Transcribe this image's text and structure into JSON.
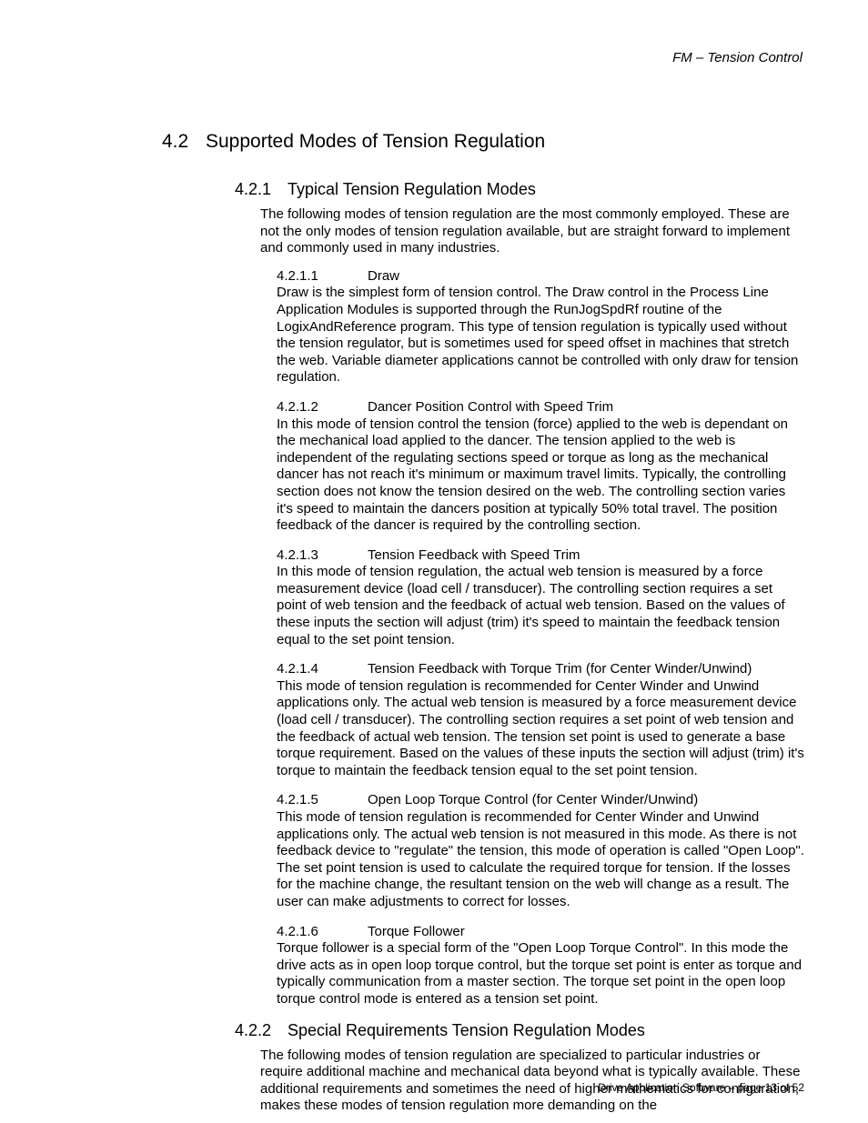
{
  "header": {
    "text": "FM – Tension Control"
  },
  "section": {
    "num": "4.2",
    "title": "Supported Modes of Tension Regulation"
  },
  "sub1": {
    "num": "4.2.1",
    "title": "Typical Tension Regulation Modes",
    "intro": "The following modes of tension regulation are the most commonly employed.  These are not the only modes of tension regulation available, but are straight forward to implement and commonly used in many industries.",
    "items": [
      {
        "num": "4.2.1.1",
        "title": "Draw",
        "body": "Draw is the simplest form of tension control.  The Draw control in the Process Line Application Modules is supported through the RunJogSpdRf routine of the LogixAndReference program.  This type of tension regulation is typically used without the tension regulator, but is sometimes used for speed offset in machines that stretch the web.  Variable diameter applications cannot be controlled with only draw for tension regulation."
      },
      {
        "num": "4.2.1.2",
        "title": "Dancer Position Control with Speed Trim",
        "body": "In this mode of tension control the tension (force) applied to the web is dependant on the mechanical load applied to the dancer.  The tension applied to the web is independent of the regulating sections speed or torque as long as the mechanical dancer has not reach it's minimum or maximum travel limits.  Typically, the controlling section does not know the tension desired on the web.  The controlling section varies it's speed to maintain the dancers position at typically 50% total travel.  The position feedback of the dancer is required by the controlling section."
      },
      {
        "num": "4.2.1.3",
        "title": "Tension Feedback with Speed Trim",
        "body": "In this mode of tension regulation, the actual web tension is measured by a force measurement device (load cell / transducer).  The controlling section requires a set point of web tension and the feedback of actual web tension.  Based on the values of these inputs the section will adjust (trim) it's speed to maintain the feedback tension equal to the set point tension."
      },
      {
        "num": "4.2.1.4",
        "title": "Tension Feedback with Torque Trim (for Center Winder/Unwind)",
        "body": "This mode of tension regulation is recommended for Center Winder and Unwind applications only.  The actual web tension is measured by a force measurement device (load cell / transducer).  The controlling section requires a set point of web tension and the feedback of actual web tension.  The tension set point is used to generate a base torque requirement.  Based on the values of these inputs the section will adjust (trim) it's torque to maintain the feedback tension equal to the set point tension."
      },
      {
        "num": "4.2.1.5",
        "title": "Open Loop Torque Control (for Center Winder/Unwind)",
        "body": "This mode of tension regulation is recommended for Center Winder and Unwind applications only.  The actual web tension is not measured in this mode.  As there is not feedback device to \"regulate\" the tension, this mode of operation is called \"Open Loop\".  The set point tension is used to calculate the required torque for tension.  If the losses for the machine change, the resultant tension on the web will change as a result.  The user can make adjustments to correct for losses."
      },
      {
        "num": "4.2.1.6",
        "title": "Torque Follower",
        "body": "Torque follower is a special form of the \"Open Loop Torque Control\".  In this mode the drive acts as in open loop torque control, but the torque set point is enter as torque and typically communication from a master section.  The torque set point in the open loop torque control mode is entered as a tension set point."
      }
    ]
  },
  "sub2": {
    "num": "4.2.2",
    "title": "Special Requirements Tension Regulation Modes",
    "intro": "The following modes of tension regulation are specialized to particular industries or require additional machine and mechanical data beyond what is typically available.  These additional requirements and sometimes the need of higher mathematics for configuration, makes these modes of tension regulation more demanding on the"
  },
  "footer": {
    "text": "Drive Application Software – page 13 of 52"
  }
}
